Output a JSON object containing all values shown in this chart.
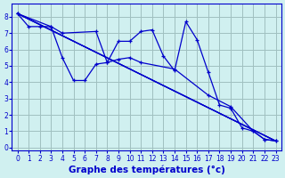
{
  "background_color": "#d0f0f0",
  "grid_color": "#a0c0c0",
  "line_color": "#0000cc",
  "xlabel": "Graphe des températures (°c)",
  "xlabel_fontsize": 7.5,
  "ylabel_ticks": [
    0,
    1,
    2,
    3,
    4,
    5,
    6,
    7,
    8
  ],
  "xlabel_ticks": [
    0,
    1,
    2,
    3,
    4,
    5,
    6,
    7,
    8,
    9,
    10,
    11,
    12,
    13,
    14,
    15,
    16,
    17,
    18,
    19,
    20,
    21,
    22,
    23
  ],
  "xlim": [
    -0.5,
    23.5
  ],
  "ylim": [
    -0.2,
    8.8
  ],
  "series": [
    {
      "x": [
        0,
        1,
        2,
        3,
        4,
        5,
        6,
        7,
        8,
        9,
        10,
        11,
        12,
        13,
        14,
        15,
        16,
        17,
        18,
        19,
        20,
        21,
        22,
        23
      ],
      "y": [
        8.2,
        7.4,
        7.4,
        7.4,
        5.5,
        4.1,
        4.1,
        5.1,
        5.2,
        6.5,
        6.5,
        7.1,
        7.2,
        5.6,
        4.7,
        7.7,
        6.6,
        4.6,
        2.6,
        2.4,
        1.2,
        1.0,
        0.5,
        0.4
      ],
      "has_markers": true
    },
    {
      "x": [
        0,
        3,
        4,
        7,
        8,
        9,
        10,
        11,
        14,
        17,
        19,
        21,
        22,
        23
      ],
      "y": [
        8.2,
        7.4,
        7.0,
        7.1,
        5.2,
        5.4,
        5.5,
        5.2,
        4.8,
        3.2,
        2.5,
        1.0,
        0.5,
        0.4
      ],
      "has_markers": true
    },
    {
      "x": [
        0,
        23
      ],
      "y": [
        8.2,
        0.4
      ],
      "has_markers": false
    },
    {
      "x": [
        0,
        23
      ],
      "y": [
        8.2,
        0.4
      ],
      "has_markers": false
    },
    {
      "x": [
        0,
        23
      ],
      "y": [
        8.2,
        0.4
      ],
      "has_markers": false
    }
  ]
}
